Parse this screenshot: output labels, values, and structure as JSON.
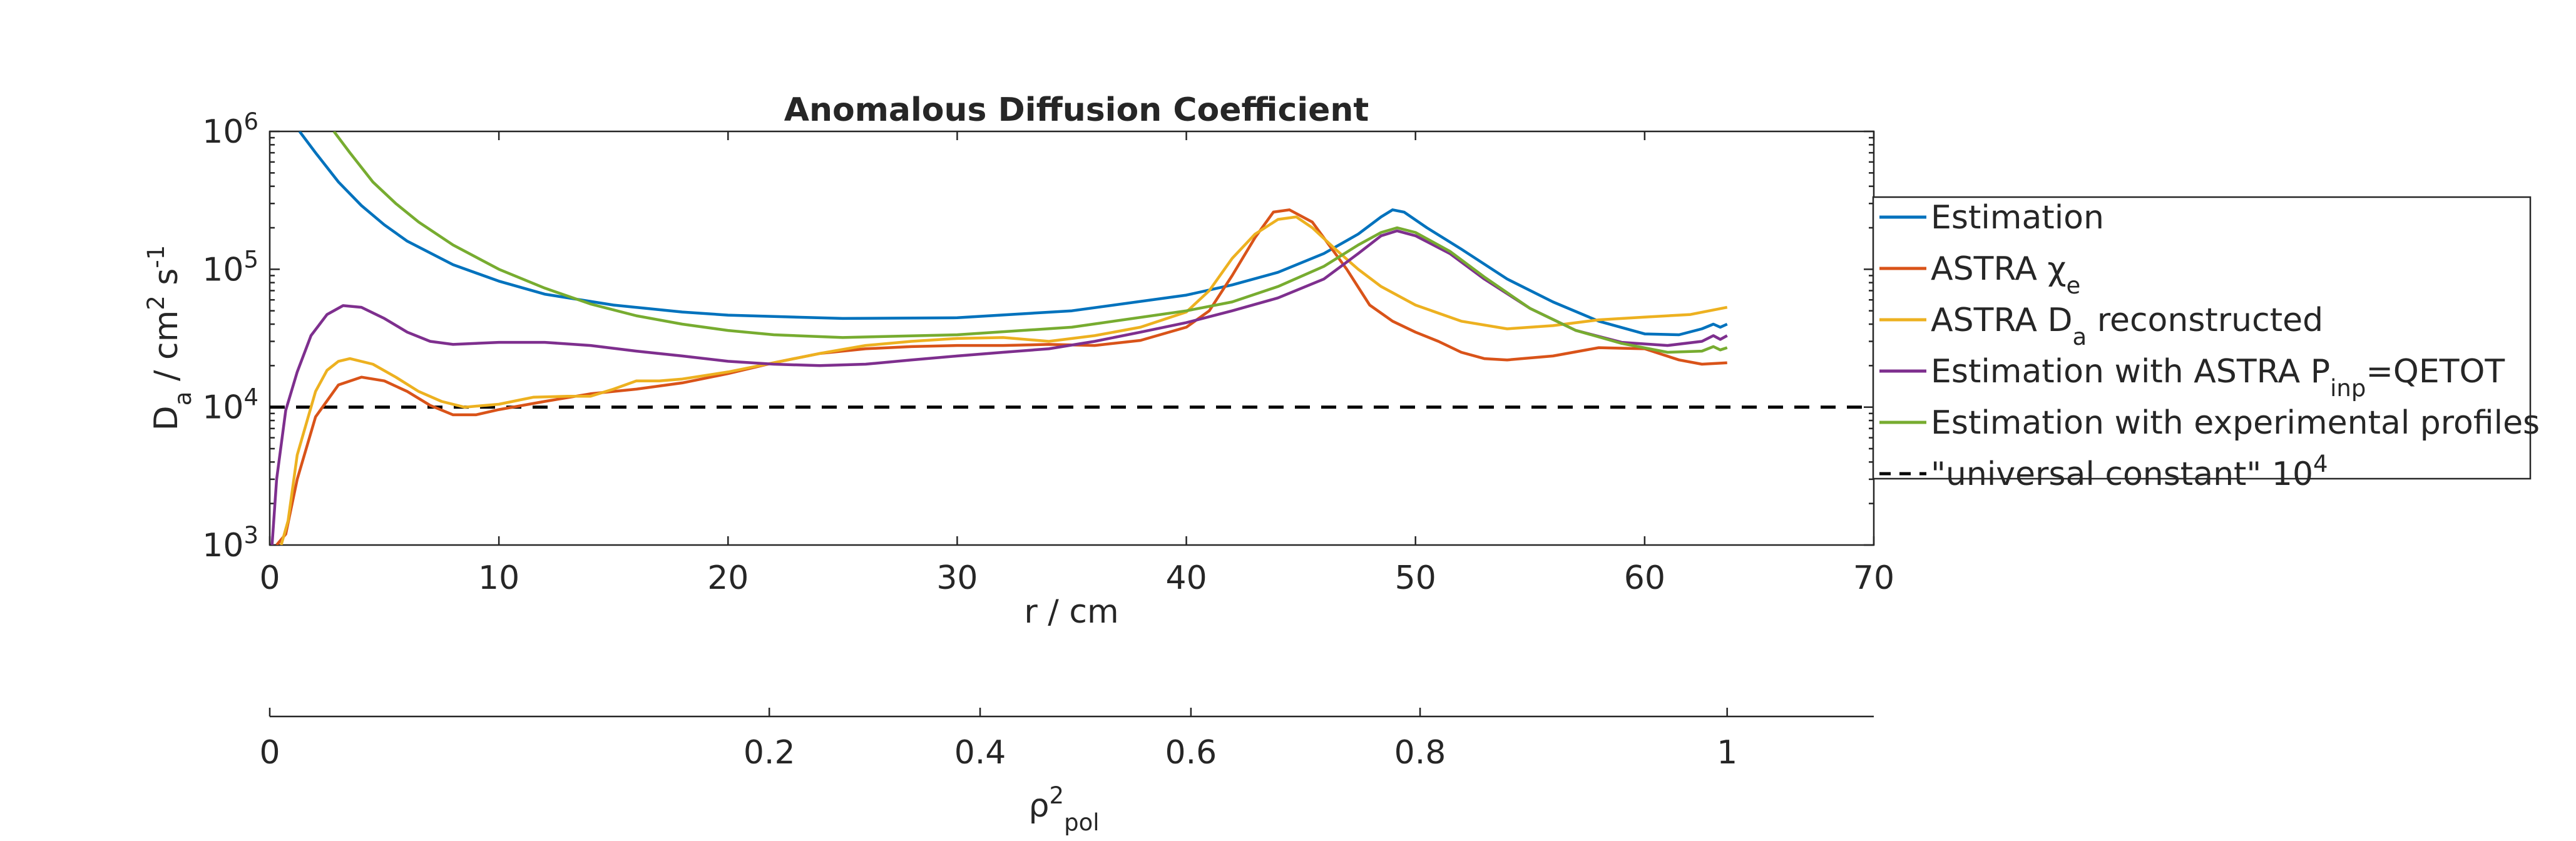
{
  "chart_data": {
    "type": "line",
    "title": "Anomalous Diffusion Coefficient",
    "xlabel": "r / cm",
    "ylabel": {
      "parts": [
        {
          "t": "D",
          "s": "n"
        },
        {
          "t": "a",
          "s": "sub"
        },
        {
          "t": " / cm",
          "s": "n"
        },
        {
          "t": "2",
          "s": "sup"
        },
        {
          "t": " s",
          "s": "n"
        },
        {
          "t": "-1",
          "s": "sup"
        }
      ]
    },
    "xlim": [
      0,
      70
    ],
    "ylim": [
      1000,
      1000000
    ],
    "yscale": "log",
    "grid": false,
    "legend_position": "outside-right",
    "x_ticks": [
      "0",
      "10",
      "20",
      "30",
      "40",
      "50",
      "60",
      "70"
    ],
    "y_ticks": [
      {
        "base": "10",
        "exp": "3"
      },
      {
        "base": "10",
        "exp": "4"
      },
      {
        "base": "10",
        "exp": "5"
      },
      {
        "base": "10",
        "exp": "6"
      }
    ],
    "secondary_axis": {
      "label": {
        "parts": [
          {
            "t": "ρ",
            "s": "n"
          },
          {
            "t": "2",
            "s": "sup"
          },
          {
            "t": "pol",
            "s": "sub"
          }
        ]
      },
      "ticks": [
        {
          "r": 0,
          "label": "0"
        },
        {
          "r": 21.8,
          "label": "0.2"
        },
        {
          "r": 31.0,
          "label": "0.4"
        },
        {
          "r": 40.2,
          "label": "0.6"
        },
        {
          "r": 50.2,
          "label": "0.8"
        },
        {
          "r": 63.6,
          "label": "1"
        }
      ]
    },
    "series": [
      {
        "name": "Estimation",
        "legend_parts": [
          {
            "t": "Estimation",
            "s": "n"
          }
        ],
        "color": "#0072bd",
        "points": [
          [
            1.3,
            1000000
          ],
          [
            2,
            700000
          ],
          [
            3,
            430000
          ],
          [
            4,
            290000
          ],
          [
            5,
            210000
          ],
          [
            6,
            160000
          ],
          [
            8,
            108000
          ],
          [
            10,
            82000
          ],
          [
            12,
            66000
          ],
          [
            15,
            55000
          ],
          [
            18,
            49000
          ],
          [
            20,
            46500
          ],
          [
            25,
            44000
          ],
          [
            30,
            44500
          ],
          [
            35,
            50000
          ],
          [
            40,
            65000
          ],
          [
            42,
            77000
          ],
          [
            44,
            95000
          ],
          [
            46,
            130000
          ],
          [
            47.5,
            180000
          ],
          [
            48.5,
            240000
          ],
          [
            49,
            270000
          ],
          [
            49.5,
            260000
          ],
          [
            50.5,
            200000
          ],
          [
            52,
            140000
          ],
          [
            54,
            85000
          ],
          [
            56,
            58000
          ],
          [
            58,
            42000
          ],
          [
            60,
            34000
          ],
          [
            61.5,
            33500
          ],
          [
            62.5,
            37000
          ],
          [
            63,
            40000
          ],
          [
            63.3,
            38000
          ],
          [
            63.6,
            40000
          ]
        ]
      },
      {
        "name": "ASTRA χe",
        "legend_parts": [
          {
            "t": "ASTRA ",
            "s": "n"
          },
          {
            "t": "χ",
            "s": "n"
          },
          {
            "t": "e",
            "s": "sub"
          }
        ],
        "color": "#d95319",
        "points": [
          [
            0.3,
            1000
          ],
          [
            0.7,
            1200
          ],
          [
            1.2,
            3000
          ],
          [
            2,
            8500
          ],
          [
            3,
            14500
          ],
          [
            4,
            16500
          ],
          [
            5,
            15500
          ],
          [
            6,
            13000
          ],
          [
            7,
            10300
          ],
          [
            8,
            8800
          ],
          [
            9,
            8800
          ],
          [
            10,
            9600
          ],
          [
            12,
            11000
          ],
          [
            14,
            12500
          ],
          [
            16,
            13500
          ],
          [
            18,
            15000
          ],
          [
            20,
            17500
          ],
          [
            22,
            21000
          ],
          [
            24,
            24500
          ],
          [
            26,
            26500
          ],
          [
            28,
            27500
          ],
          [
            30,
            28000
          ],
          [
            32,
            28000
          ],
          [
            34,
            28500
          ],
          [
            36,
            28000
          ],
          [
            38,
            30500
          ],
          [
            40,
            38000
          ],
          [
            41,
            50000
          ],
          [
            42,
            90000
          ],
          [
            43,
            170000
          ],
          [
            43.8,
            260000
          ],
          [
            44.5,
            270000
          ],
          [
            45.5,
            220000
          ],
          [
            47,
            100000
          ],
          [
            48,
            55000
          ],
          [
            49,
            42000
          ],
          [
            50,
            35000
          ],
          [
            51,
            30000
          ],
          [
            52,
            25000
          ],
          [
            53,
            22500
          ],
          [
            54,
            22000
          ],
          [
            56,
            23500
          ],
          [
            58,
            27000
          ],
          [
            60,
            26500
          ],
          [
            61.5,
            22000
          ],
          [
            62.5,
            20500
          ],
          [
            63.6,
            21000
          ]
        ]
      },
      {
        "name": "ASTRA Da reconstructed",
        "legend_parts": [
          {
            "t": "ASTRA D",
            "s": "n"
          },
          {
            "t": "a",
            "s": "sub"
          },
          {
            "t": " reconstructed",
            "s": "n"
          }
        ],
        "color": "#edb120",
        "points": [
          [
            0.5,
            1000
          ],
          [
            0.8,
            1500
          ],
          [
            1.2,
            4500
          ],
          [
            2,
            13000
          ],
          [
            2.5,
            18500
          ],
          [
            3,
            21500
          ],
          [
            3.5,
            22500
          ],
          [
            4.5,
            20500
          ],
          [
            5.5,
            16500
          ],
          [
            6.5,
            13000
          ],
          [
            7.5,
            11000
          ],
          [
            8.5,
            10000
          ],
          [
            10,
            10500
          ],
          [
            11.5,
            11800
          ],
          [
            13,
            12000
          ],
          [
            14,
            12000
          ],
          [
            15,
            13500
          ],
          [
            16,
            15500
          ],
          [
            17,
            15500
          ],
          [
            18,
            16000
          ],
          [
            20,
            18000
          ],
          [
            22,
            21000
          ],
          [
            24,
            24500
          ],
          [
            26,
            28000
          ],
          [
            28,
            30000
          ],
          [
            30,
            31500
          ],
          [
            32,
            32000
          ],
          [
            34,
            30000
          ],
          [
            36,
            33000
          ],
          [
            38,
            38000
          ],
          [
            40,
            49000
          ],
          [
            41,
            70000
          ],
          [
            42,
            120000
          ],
          [
            43,
            180000
          ],
          [
            44,
            230000
          ],
          [
            44.8,
            240000
          ],
          [
            45.5,
            200000
          ],
          [
            46.5,
            140000
          ],
          [
            47.5,
            100000
          ],
          [
            48.5,
            75000
          ],
          [
            50,
            55000
          ],
          [
            52,
            42000
          ],
          [
            54,
            37000
          ],
          [
            56,
            39000
          ],
          [
            58,
            43000
          ],
          [
            60,
            45000
          ],
          [
            62,
            47000
          ],
          [
            63.6,
            53000
          ]
        ]
      },
      {
        "name": "Estimation with ASTRA Pinp=QETOT",
        "legend_parts": [
          {
            "t": "Estimation with ASTRA P",
            "s": "n"
          },
          {
            "t": "inp",
            "s": "sub"
          },
          {
            "t": "=QETOT",
            "s": "n"
          }
        ],
        "color": "#7e2f8e",
        "points": [
          [
            0.1,
            1000
          ],
          [
            0.3,
            3000
          ],
          [
            0.7,
            9500
          ],
          [
            1.2,
            18000
          ],
          [
            1.8,
            33000
          ],
          [
            2.5,
            47000
          ],
          [
            3.2,
            54500
          ],
          [
            4,
            53000
          ],
          [
            5,
            44000
          ],
          [
            6,
            35000
          ],
          [
            7,
            30000
          ],
          [
            8,
            28500
          ],
          [
            10,
            29500
          ],
          [
            12,
            29500
          ],
          [
            14,
            28000
          ],
          [
            16,
            25500
          ],
          [
            18,
            23500
          ],
          [
            20,
            21500
          ],
          [
            22,
            20500
          ],
          [
            24,
            20000
          ],
          [
            26,
            20500
          ],
          [
            28,
            22000
          ],
          [
            30,
            23500
          ],
          [
            32,
            25000
          ],
          [
            34,
            26500
          ],
          [
            36,
            30000
          ],
          [
            38,
            35000
          ],
          [
            40,
            41000
          ],
          [
            42,
            50000
          ],
          [
            44,
            62000
          ],
          [
            46,
            85000
          ],
          [
            47.5,
            130000
          ],
          [
            48.5,
            175000
          ],
          [
            49.2,
            190000
          ],
          [
            50,
            175000
          ],
          [
            51.5,
            130000
          ],
          [
            53,
            85000
          ],
          [
            55,
            52000
          ],
          [
            57,
            36000
          ],
          [
            59,
            29500
          ],
          [
            61,
            28000
          ],
          [
            62.5,
            30000
          ],
          [
            63,
            33000
          ],
          [
            63.3,
            31000
          ],
          [
            63.6,
            33000
          ]
        ]
      },
      {
        "name": "Estimation with experimental profiles",
        "legend_parts": [
          {
            "t": "Estimation with experimental profiles",
            "s": "n"
          }
        ],
        "color": "#77ac30",
        "points": [
          [
            2.8,
            1000000
          ],
          [
            3.5,
            700000
          ],
          [
            4.5,
            430000
          ],
          [
            5.5,
            300000
          ],
          [
            6.5,
            220000
          ],
          [
            8,
            150000
          ],
          [
            10,
            100000
          ],
          [
            12,
            73000
          ],
          [
            14,
            56000
          ],
          [
            16,
            46000
          ],
          [
            18,
            40000
          ],
          [
            20,
            36000
          ],
          [
            22,
            33500
          ],
          [
            25,
            32000
          ],
          [
            30,
            33500
          ],
          [
            35,
            38000
          ],
          [
            40,
            50000
          ],
          [
            42,
            58000
          ],
          [
            44,
            75000
          ],
          [
            46,
            105000
          ],
          [
            47.5,
            150000
          ],
          [
            48.5,
            185000
          ],
          [
            49.2,
            200000
          ],
          [
            50,
            185000
          ],
          [
            51.5,
            135000
          ],
          [
            53,
            88000
          ],
          [
            55,
            52000
          ],
          [
            57,
            36000
          ],
          [
            59,
            29000
          ],
          [
            61,
            25000
          ],
          [
            62.5,
            25500
          ],
          [
            63,
            27500
          ],
          [
            63.3,
            26000
          ],
          [
            63.6,
            27000
          ]
        ]
      }
    ],
    "reference_line": {
      "name": "\"universal constant\" 10^4",
      "legend_parts": [
        {
          "t": "\"universal constant\" 10",
          "s": "n"
        },
        {
          "t": "4",
          "s": "sup"
        }
      ],
      "value": 10000,
      "color": "#000000",
      "style": "dashed"
    }
  }
}
